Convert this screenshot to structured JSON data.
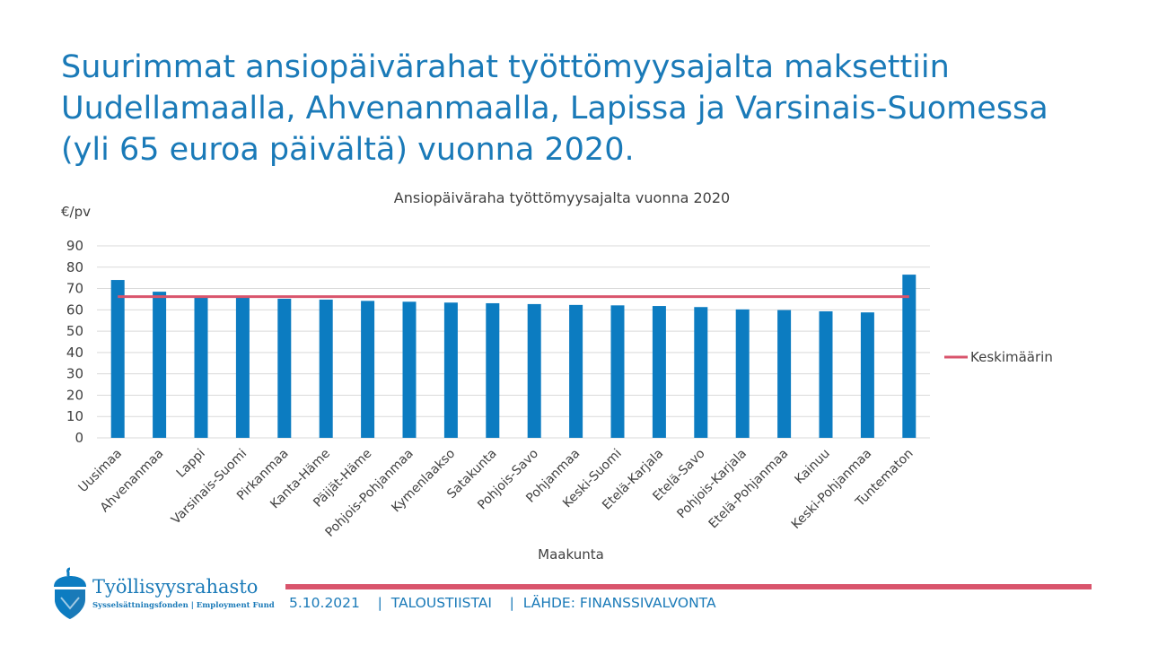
{
  "slide": {
    "title": "Suurimmat ansiopäivärahat työttömyysajalta maksettiin Uudellamaalla, Ahvenanmaalla, Lapissa ja Varsinais-Suomessa (yli 65 euroa päivältä) vuonna 2020."
  },
  "footer": {
    "date": "5.10.2021",
    "separator": "|",
    "series_name": "TALOUSTIISTAI",
    "source": "LÄHDE: FINANSSIVALVONTA"
  },
  "logo": {
    "name": "Työllisyysrahasto",
    "subtitle": "Sysselsättningsfonden | Employment Fund"
  },
  "colors": {
    "title": "#1a7ab8",
    "bar": "#0c7cc1",
    "average_line": "#d9546c",
    "grid": "#d9d9d9",
    "axis_text": "#404040"
  },
  "chart_data": {
    "type": "bar",
    "title": "Ansiopäiväraha työttömyysajalta vuonna 2020",
    "ylabel": "€/pv",
    "xlabel": "Maakunta",
    "ylim": [
      0,
      90
    ],
    "yticks": [
      0,
      10,
      20,
      30,
      40,
      50,
      60,
      70,
      80,
      90
    ],
    "grid": true,
    "legend_position": "right",
    "categories": [
      "Uusimaa",
      "Ahvenanmaa",
      "Lappi",
      "Varsinais-Suomi",
      "Pirkanmaa",
      "Kanta-Häme",
      "Päijät-Häme",
      "Pohjois-Pohjanmaa",
      "Kymenlaakso",
      "Satakunta",
      "Pohjois-Savo",
      "Pohjanmaa",
      "Keski-Suomi",
      "Etelä-Karjala",
      "Etelä-Savo",
      "Pohjois-Karjala",
      "Etelä-Pohjanmaa",
      "Kainuu",
      "Keski-Pohjanmaa",
      "Tuntematon"
    ],
    "series": [
      {
        "values": [
          74,
          68.5,
          66.5,
          65.8,
          65.2,
          64.8,
          64.2,
          63.8,
          63.4,
          63.1,
          62.7,
          62.3,
          62.1,
          61.8,
          61.3,
          60.2,
          59.9,
          59.3,
          58.8,
          76.5
        ]
      },
      {
        "name": "Keskimäärin",
        "type": "line",
        "value": 66.2
      }
    ]
  }
}
